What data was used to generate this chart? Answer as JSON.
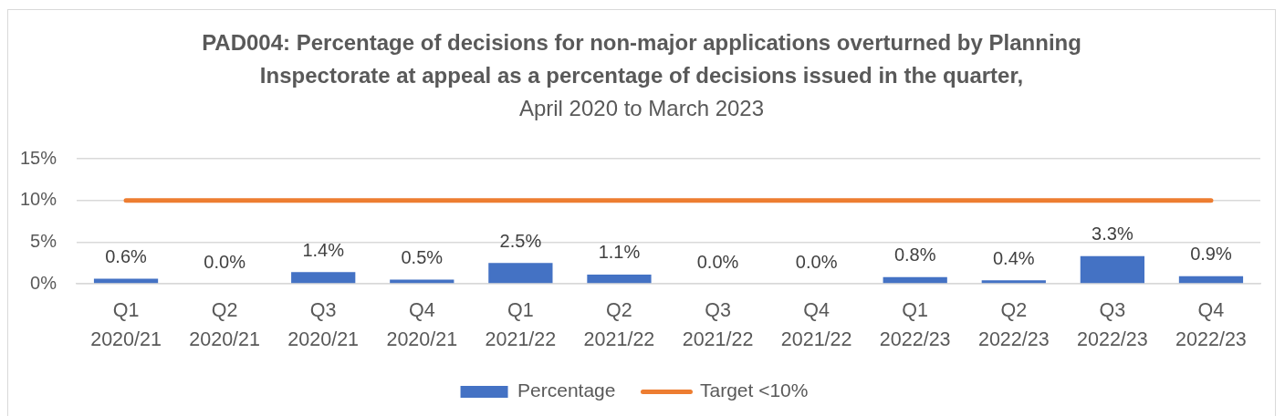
{
  "chart_data": {
    "type": "bar",
    "title": "PAD004: Percentage of decisions for non-major applications overturned by Planning Inspectorate at appeal as a percentage of decisions issued in the quarter,",
    "subtitle": "April 2020 to March 2023",
    "categories": [
      "Q1 2020/21",
      "Q2 2020/21",
      "Q3 2020/21",
      "Q4 2020/21",
      "Q1 2021/22",
      "Q2 2021/22",
      "Q3 2021/22",
      "Q4 2021/22",
      "Q1 2022/23",
      "Q2 2022/23",
      "Q3 2022/23",
      "Q4 2022/23"
    ],
    "series": [
      {
        "name": "Percentage",
        "color": "#4472c4",
        "values": [
          0.6,
          0.0,
          1.4,
          0.5,
          2.5,
          1.1,
          0.0,
          0.0,
          0.8,
          0.4,
          3.3,
          0.9
        ],
        "value_labels": [
          "0.6%",
          "0.0%",
          "1.4%",
          "0.5%",
          "2.5%",
          "1.1%",
          "0.0%",
          "0.0%",
          "0.8%",
          "0.4%",
          "3.3%",
          "0.9%"
        ]
      },
      {
        "name": "Target <10%",
        "type": "line",
        "color": "#ed7d31",
        "values": [
          10,
          10,
          10,
          10,
          10,
          10,
          10,
          10,
          10,
          10,
          10,
          10
        ]
      }
    ],
    "ylim": [
      0,
      15
    ],
    "yticks": [
      {
        "value": 0,
        "label": "0%"
      },
      {
        "value": 5,
        "label": "5%"
      },
      {
        "value": 10,
        "label": "10%"
      },
      {
        "value": 15,
        "label": "15%"
      }
    ],
    "grid": "y",
    "legend": "bottom",
    "marker": "none",
    "line_style": "solid"
  }
}
